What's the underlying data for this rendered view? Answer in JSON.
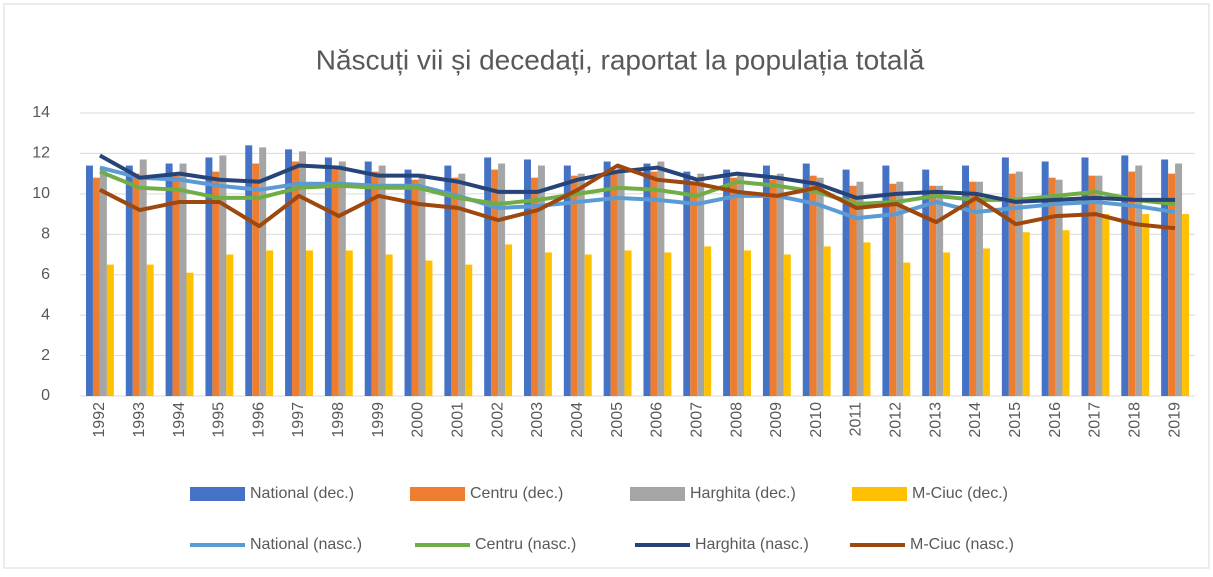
{
  "chart_data": {
    "type": "bar_line",
    "title": "Născuți vii și decedați, raportat la populația totală",
    "categories": [
      "1992",
      "1993",
      "1994",
      "1995",
      "1996",
      "1997",
      "1998",
      "1999",
      "2000",
      "2001",
      "2002",
      "2003",
      "2004",
      "2005",
      "2006",
      "2007",
      "2008",
      "2009",
      "2010",
      "2011",
      "2012",
      "2013",
      "2014",
      "2015",
      "2016",
      "2017",
      "2018",
      "2019"
    ],
    "series": [
      {
        "name": "National (dec.)",
        "kind": "bar",
        "color": "#4472c4",
        "values": [
          11.4,
          11.4,
          11.5,
          11.8,
          12.4,
          12.2,
          11.8,
          11.6,
          11.2,
          11.4,
          11.8,
          11.7,
          11.4,
          11.6,
          11.5,
          11.1,
          11.2,
          11.4,
          11.5,
          11.2,
          11.4,
          11.2,
          11.4,
          11.8,
          11.6,
          11.8,
          11.9,
          11.7
        ]
      },
      {
        "name": "Centru (dec.)",
        "kind": "bar",
        "color": "#ed7d31",
        "values": [
          10.8,
          11.0,
          10.9,
          11.1,
          11.5,
          11.6,
          11.2,
          11.1,
          10.7,
          10.8,
          11.2,
          10.8,
          10.9,
          11.0,
          11.1,
          10.6,
          10.8,
          10.7,
          10.9,
          10.4,
          10.5,
          10.4,
          10.6,
          11.0,
          10.8,
          10.9,
          11.1,
          11.0
        ]
      },
      {
        "name": "Harghita (dec.)",
        "kind": "bar",
        "color": "#a5a5a5",
        "values": [
          11.3,
          11.7,
          11.5,
          11.9,
          12.3,
          12.1,
          11.6,
          11.4,
          11.0,
          11.0,
          11.5,
          11.4,
          11.0,
          11.3,
          11.6,
          11.0,
          11.0,
          11.0,
          10.8,
          10.6,
          10.6,
          10.4,
          10.6,
          11.1,
          10.7,
          10.9,
          11.4,
          11.5
        ]
      },
      {
        "name": "M-Ciuc (dec.)",
        "kind": "bar",
        "color": "#ffc000",
        "values": [
          6.5,
          6.5,
          6.1,
          7.0,
          7.2,
          7.2,
          7.2,
          7.0,
          6.7,
          6.5,
          7.5,
          7.1,
          7.0,
          7.2,
          7.1,
          7.4,
          7.2,
          7.0,
          7.4,
          7.6,
          6.6,
          7.1,
          7.3,
          8.1,
          8.2,
          9.0,
          9.0,
          9.0
        ]
      },
      {
        "name": "National (nasc.)",
        "kind": "line",
        "color": "#5b9bd5",
        "values": [
          11.3,
          10.8,
          10.7,
          10.4,
          10.2,
          10.5,
          10.5,
          10.4,
          10.4,
          9.9,
          9.3,
          9.4,
          9.6,
          9.8,
          9.7,
          9.5,
          9.9,
          9.9,
          9.5,
          8.8,
          9.0,
          9.6,
          9.1,
          9.3,
          9.5,
          9.6,
          9.4,
          9.1
        ]
      },
      {
        "name": "Centru (nasc.)",
        "kind": "line",
        "color": "#70ad47",
        "values": [
          11.1,
          10.3,
          10.2,
          9.8,
          9.8,
          10.3,
          10.4,
          10.3,
          10.3,
          9.8,
          9.5,
          9.7,
          10.0,
          10.3,
          10.2,
          9.9,
          10.6,
          10.4,
          10.1,
          9.5,
          9.6,
          9.9,
          9.7,
          9.7,
          9.9,
          10.1,
          9.7,
          9.5
        ]
      },
      {
        "name": "Harghita (nasc.)",
        "kind": "line",
        "color": "#264478",
        "values": [
          11.9,
          10.8,
          11.0,
          10.7,
          10.6,
          11.4,
          11.3,
          10.9,
          10.9,
          10.6,
          10.1,
          10.1,
          10.7,
          11.1,
          11.3,
          10.7,
          11.0,
          10.8,
          10.5,
          9.8,
          10.0,
          10.1,
          10.0,
          9.6,
          9.7,
          9.8,
          9.7,
          9.7
        ]
      },
      {
        "name": "M-Ciuc (nasc.)",
        "kind": "line",
        "color": "#9e480e",
        "values": [
          10.2,
          9.2,
          9.6,
          9.6,
          8.4,
          9.9,
          8.9,
          9.9,
          9.5,
          9.3,
          8.7,
          9.2,
          10.2,
          11.4,
          10.7,
          10.5,
          10.1,
          9.9,
          10.3,
          9.3,
          9.5,
          8.6,
          9.8,
          8.5,
          8.9,
          9.0,
          8.5,
          8.3
        ]
      }
    ],
    "ylim": [
      0,
      14
    ],
    "yticks": [
      0,
      2,
      4,
      6,
      8,
      10,
      12,
      14
    ],
    "grid": true
  }
}
